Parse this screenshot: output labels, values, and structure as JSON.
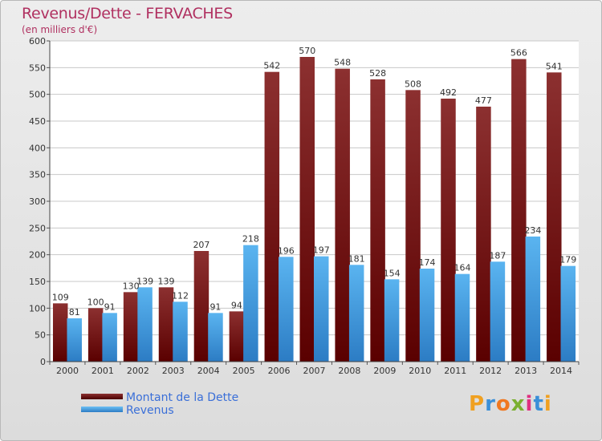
{
  "title": "Revenus/Dette - FERVACHES",
  "subtitle": "(en milliers d'€)",
  "logo_text": "Proxiti",
  "colors": {
    "dette": "#7a0f14",
    "revenus": "#3f9be0",
    "title": "#b03060",
    "legend_text": "#3a6fd8"
  },
  "legend": [
    {
      "label": "Montant de la Dette",
      "color": "#7a0f14"
    },
    {
      "label": "Revenus",
      "color": "#3f9be0"
    }
  ],
  "chart_data": {
    "type": "bar",
    "title": "Revenus/Dette - FERVACHES",
    "subtitle": "(en milliers d'€)",
    "xlabel": "",
    "ylabel": "",
    "ylim": [
      0,
      600
    ],
    "yticks": [
      0,
      50,
      100,
      150,
      200,
      250,
      300,
      350,
      400,
      450,
      500,
      550,
      600
    ],
    "grid": true,
    "legend_position": "bottom-left",
    "categories": [
      "2000",
      "2001",
      "2002",
      "2003",
      "2004",
      "2005",
      "2006",
      "2007",
      "2008",
      "2009",
      "2010",
      "2011",
      "2012",
      "2013",
      "2014"
    ],
    "series": [
      {
        "name": "Montant de la Dette",
        "values": [
          109,
          100,
          130,
          139,
          207,
          94,
          542,
          570,
          548,
          528,
          508,
          492,
          477,
          566,
          541
        ]
      },
      {
        "name": "Revenus",
        "values": [
          81,
          91,
          139,
          112,
          91,
          218,
          196,
          197,
          181,
          154,
          174,
          164,
          187,
          234,
          179
        ]
      }
    ]
  }
}
